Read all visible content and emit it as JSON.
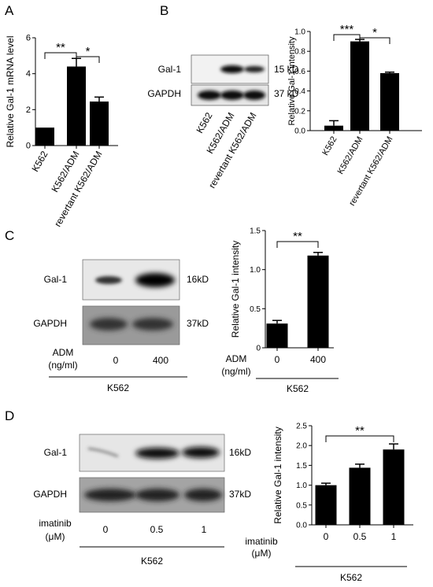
{
  "panels": {
    "A": {
      "label": "A"
    },
    "B": {
      "label": "B",
      "blot_rows": [
        "Gal-1",
        "GAPDH"
      ],
      "sizes": [
        "15 kD",
        "37 kD"
      ],
      "lanes": [
        "K562",
        "K562/ADM",
        "revertant K562/ADM"
      ]
    },
    "C": {
      "label": "C",
      "blot_rows": [
        "Gal-1",
        "GAPDH"
      ],
      "sizes": [
        "16kD",
        "37kD"
      ],
      "treatment_label": "ADM",
      "treatment_unit": "(ng/ml)",
      "doses": [
        "0",
        "400"
      ],
      "cell_line": "K562"
    },
    "D": {
      "label": "D",
      "blot_rows": [
        "Gal-1",
        "GAPDH"
      ],
      "sizes": [
        "16kD",
        "37kD"
      ],
      "treatment_label": "imatinib",
      "treatment_unit": "(μM)",
      "doses": [
        "0",
        "0.5",
        "1"
      ],
      "cell_line": "K562"
    }
  },
  "chart_data": [
    {
      "id": "A",
      "type": "bar",
      "categories": [
        "K562",
        "K562/ADM",
        "revertant K562/ADM"
      ],
      "values": [
        1.0,
        4.4,
        2.45
      ],
      "errors": [
        0,
        0.45,
        0.25
      ],
      "ylabel": "Relative Gal-1 mRNA level",
      "ylim": [
        0,
        6
      ],
      "yticks": [
        "0",
        "2",
        "4",
        "6"
      ],
      "significance": [
        {
          "from": 0,
          "to": 1,
          "label": "**"
        },
        {
          "from": 1,
          "to": 2,
          "label": "*"
        }
      ]
    },
    {
      "id": "B",
      "type": "bar",
      "categories": [
        "K562",
        "K562/ADM",
        "revertant K562/ADM"
      ],
      "values": [
        0.05,
        0.9,
        0.58
      ],
      "errors": [
        0.05,
        0.02,
        0.01
      ],
      "ylabel": "Relative Gal-1 intensity",
      "ylim": [
        0,
        1.0
      ],
      "yticks": [
        "0.0",
        "0.2",
        "0.4",
        "0.6",
        "0.8",
        "1.0"
      ],
      "significance": [
        {
          "from": 0,
          "to": 1,
          "label": "***"
        },
        {
          "from": 1,
          "to": 2,
          "label": "*"
        }
      ]
    },
    {
      "id": "C",
      "type": "bar",
      "categories": [
        "0",
        "400"
      ],
      "values": [
        0.31,
        1.18
      ],
      "errors": [
        0.04,
        0.04
      ],
      "ylabel": "Relative Gal-1 intensity",
      "ylim": [
        0,
        1.5
      ],
      "yticks": [
        "0",
        "0.5",
        "1.0",
        "1.5"
      ],
      "significance": [
        {
          "from": 0,
          "to": 1,
          "label": "**"
        }
      ]
    },
    {
      "id": "D",
      "type": "bar",
      "categories": [
        "0",
        "0.5",
        "1"
      ],
      "values": [
        1.0,
        1.44,
        1.9
      ],
      "errors": [
        0.05,
        0.09,
        0.14
      ],
      "ylabel": "Relative Gal-1 intensity",
      "ylim": [
        0,
        2.5
      ],
      "yticks": [
        "0.0",
        "0.5",
        "1.0",
        "1.5",
        "2.0",
        "2.5"
      ],
      "significance": [
        {
          "from": 0,
          "to": 2,
          "label": "**"
        }
      ]
    }
  ]
}
